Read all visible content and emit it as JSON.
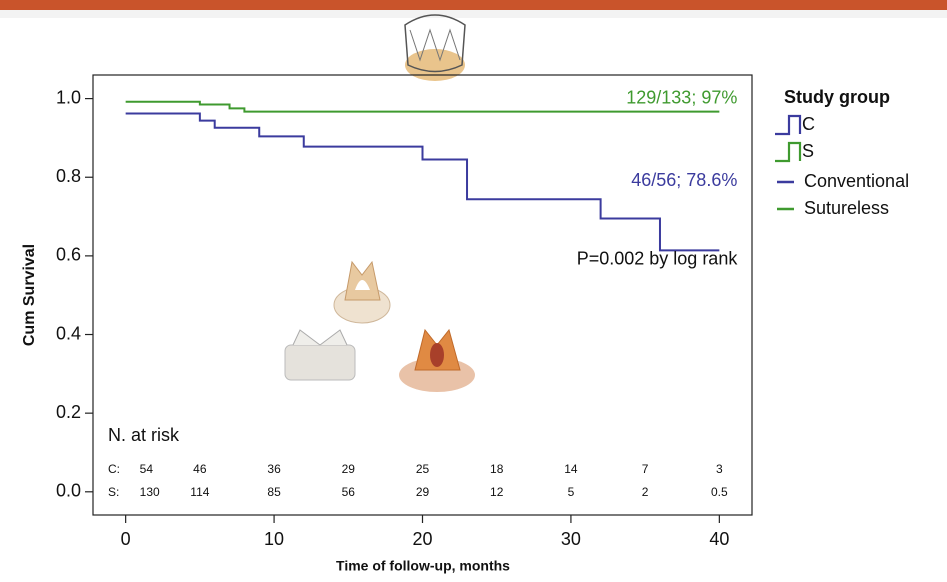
{
  "chart_data": {
    "type": "line",
    "step": "post",
    "xlabel": "Time of follow-up, months",
    "ylabel": "Cum Survival",
    "xlim": [
      -2.2,
      42.2
    ],
    "ylim": [
      -0.059,
      1.06
    ],
    "xticks": [
      0,
      10,
      20,
      30,
      40
    ],
    "yticks": [
      {
        "value": 0,
        "label": "0.0"
      },
      0.2,
      0.4,
      0.6,
      0.8,
      {
        "value": 1,
        "label": "1.0"
      }
    ],
    "series": [
      {
        "name": "Conventional",
        "color": "#3b3b9e",
        "x": [
          0,
          5,
          6,
          9,
          12,
          20,
          23,
          32,
          36,
          40
        ],
        "values": [
          0.962,
          0.944,
          0.926,
          0.904,
          0.878,
          0.845,
          0.744,
          0.695,
          0.614,
          0.614
        ]
      },
      {
        "name": "Sutureless",
        "color": "#3f9a2f",
        "x": [
          0,
          5,
          7,
          8,
          40
        ],
        "values": [
          0.992,
          0.985,
          0.975,
          0.967,
          0.967
        ]
      }
    ],
    "legend": {
      "title": "Study group",
      "position": "right",
      "groups": [
        {
          "label": "C",
          "color": "#3b3b9e"
        },
        {
          "label": "S",
          "color": "#3f9a2f"
        }
      ]
    },
    "annotations": [
      {
        "text": "129/133; 97%",
        "x": 40,
        "y": 1.0,
        "color": "#3f9a2f"
      },
      {
        "text": "46/56; 78.6%",
        "x": 40,
        "y": 0.79,
        "color": "#3b3b9e"
      },
      {
        "text": "P=0.002 by log rank",
        "x": 40,
        "y": 0.59,
        "color": "#111111"
      }
    ],
    "risk_table": {
      "title": "N. at risk",
      "x": [
        0,
        5,
        10,
        15,
        20,
        25,
        30,
        35,
        40
      ],
      "rows": [
        {
          "label": "C:",
          "values": [
            54,
            46,
            36,
            29,
            25,
            18,
            14,
            7,
            3
          ]
        },
        {
          "label": "S:",
          "values": [
            130,
            114,
            85,
            56,
            29,
            12,
            5,
            2,
            0.5
          ]
        }
      ]
    }
  }
}
